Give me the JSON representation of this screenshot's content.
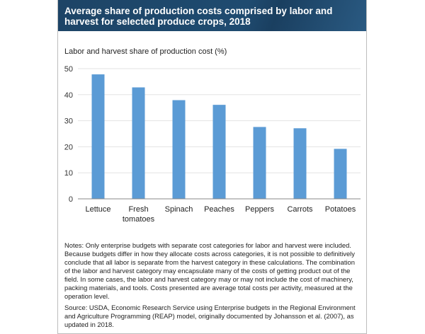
{
  "chart_data": {
    "type": "bar",
    "title": "Average share of production costs comprised by labor and harvest for selected produce crops, 2018",
    "ylabel": "Labor and harvest share of production cost (%)",
    "xlabel": "",
    "categories": [
      "Lettuce",
      "Fresh tomatoes",
      "Spinach",
      "Peaches",
      "Peppers",
      "Carrots",
      "Potatoes"
    ],
    "category_lines": [
      [
        "Lettuce"
      ],
      [
        "Fresh",
        "tomatoes"
      ],
      [
        "Spinach"
      ],
      [
        "Peaches"
      ],
      [
        "Peppers"
      ],
      [
        "Carrots"
      ],
      [
        "Potatoes"
      ]
    ],
    "values": [
      47.8,
      42.8,
      37.9,
      36.1,
      27.6,
      27.1,
      19.2
    ],
    "ylim": [
      0,
      50
    ],
    "yticks": [
      0,
      10,
      20,
      30,
      40,
      50
    ],
    "grid": true,
    "bar_color": "#5b9bd5",
    "title_band_color": "#1f4b70"
  },
  "notes": "Notes: Only enterprise budgets with separate cost categories for labor and harvest were included. Because budgets differ in how they allocate costs across categories, it is not possible to definitively conclude that all labor is separate from the harvest category in these calculations. The combination of the labor and harvest category may encapsulate many of the costs of getting product out of the field. In some cases, the labor and harvest category may or may not include the cost of machinery, packing materials, and tools. Costs presented are average total costs per activity, measured at the operation level.",
  "source": "Source: USDA, Economic Research Service using Enterprise budgets in the Regional Environment and Agriculture Programming (REAP) model, originally documented by Johansson et al. (2007), as updated in 2018."
}
